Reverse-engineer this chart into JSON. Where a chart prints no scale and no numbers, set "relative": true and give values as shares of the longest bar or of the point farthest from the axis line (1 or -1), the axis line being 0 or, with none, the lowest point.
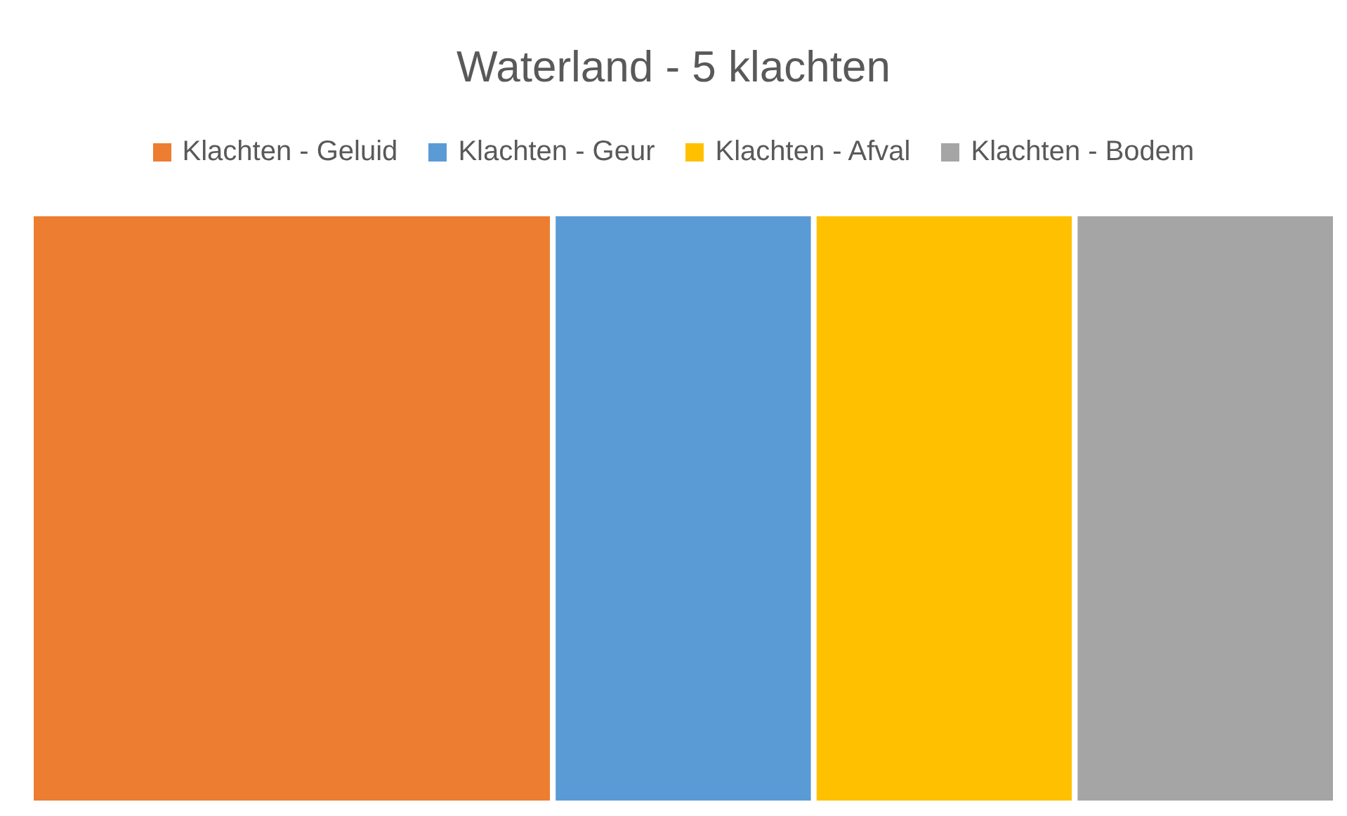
{
  "chart_data": {
    "type": "bar",
    "title": "Waterland - 5 klachten",
    "orientation": "horizontal",
    "stacked": true,
    "relative": true,
    "categories": [
      null
    ],
    "series": [
      {
        "name": "Klachten - Geluid",
        "color": "#ed7d31",
        "values": [
          0.4
        ]
      },
      {
        "name": "Klachten - Geur",
        "color": "#5b9bd5",
        "values": [
          0.2
        ]
      },
      {
        "name": "Klachten - Afval",
        "color": "#ffc000",
        "values": [
          0.2
        ]
      },
      {
        "name": "Klachten - Bodem",
        "color": "#a5a5a5",
        "values": [
          0.2
        ]
      }
    ],
    "legend": "top"
  }
}
